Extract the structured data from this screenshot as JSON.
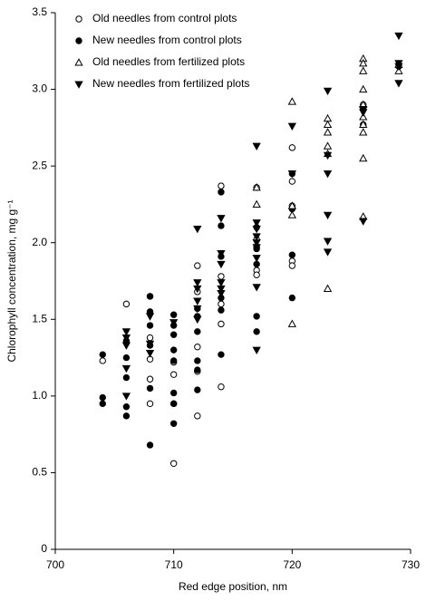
{
  "chart_data": {
    "type": "scatter",
    "xlabel": "Red edge position, nm",
    "ylabel": "Chlorophyll concentration, mg g⁻¹",
    "xlim": [
      700,
      730
    ],
    "xticks": [
      700,
      710,
      720,
      730
    ],
    "ylim": [
      0,
      3.5
    ],
    "yticks": [
      0,
      0.5,
      {
        "value": 1,
        "label": "1.0"
      },
      1.5,
      {
        "value": 2,
        "label": "2.0"
      },
      2.5,
      {
        "value": 3,
        "label": "3.0"
      },
      3.5
    ],
    "legend": "top-left",
    "series": [
      {
        "name": "Old needles from control plots",
        "color": "#000000",
        "marker": "circle-open",
        "x": [
          704,
          706,
          708,
          708,
          708,
          708,
          708,
          710,
          710,
          710,
          710,
          712,
          712,
          712,
          712,
          712,
          714,
          714,
          714,
          714,
          714,
          717,
          717,
          717,
          717,
          717,
          720,
          720,
          720,
          720,
          720,
          726,
          726
        ],
        "values": [
          1.23,
          1.6,
          1.65,
          1.38,
          1.24,
          1.11,
          0.95,
          1.22,
          1.14,
          0.95,
          0.56,
          1.85,
          1.68,
          1.32,
          1.16,
          0.87,
          2.37,
          1.78,
          1.6,
          1.47,
          1.06,
          2.36,
          2.02,
          1.97,
          1.82,
          1.79,
          2.62,
          2.4,
          2.24,
          1.88,
          1.85,
          2.87,
          2.9
        ]
      },
      {
        "name": "New needles from control plots",
        "color": "#000000",
        "marker": "circle-filled",
        "x": [
          704,
          704,
          704,
          706,
          706,
          706,
          706,
          706,
          708,
          708,
          708,
          708,
          708,
          708,
          710,
          710,
          710,
          710,
          710,
          710,
          710,
          710,
          712,
          712,
          712,
          712,
          712,
          712,
          714,
          714,
          714,
          714,
          714,
          714,
          717,
          717,
          717,
          717,
          717,
          720,
          720,
          720,
          720,
          726,
          726,
          729
        ],
        "values": [
          1.27,
          0.99,
          0.95,
          1.36,
          1.25,
          1.12,
          0.93,
          0.87,
          1.65,
          1.55,
          1.46,
          1.33,
          1.05,
          0.68,
          1.53,
          1.46,
          1.4,
          1.3,
          1.23,
          1.02,
          0.95,
          0.82,
          1.57,
          1.52,
          1.42,
          1.23,
          1.17,
          1.04,
          2.33,
          2.11,
          1.91,
          1.64,
          1.56,
          1.27,
          2.1,
          1.96,
          1.86,
          1.52,
          1.42,
          2.45,
          2.22,
          1.92,
          1.64,
          2.87,
          2.77,
          3.15
        ]
      },
      {
        "name": "Old needles from fertilized plots",
        "color": "#000000",
        "marker": "triangle-up-open",
        "x": [
          717,
          717,
          720,
          720,
          720,
          720,
          723,
          723,
          723,
          723,
          723,
          723,
          726,
          726,
          726,
          726,
          726,
          726,
          726,
          726,
          726,
          726,
          729,
          729
        ],
        "values": [
          2.36,
          2.25,
          2.92,
          2.24,
          2.18,
          1.47,
          2.81,
          2.77,
          2.72,
          2.63,
          2.58,
          1.7,
          3.2,
          3.17,
          3.12,
          3.0,
          2.9,
          2.82,
          2.77,
          2.72,
          2.55,
          2.17,
          3.16,
          3.12
        ]
      },
      {
        "name": "New needles from fertilized plots",
        "color": "#000000",
        "marker": "triangle-down-filled",
        "x": [
          706,
          706,
          706,
          706,
          706,
          708,
          708,
          708,
          710,
          712,
          712,
          712,
          712,
          712,
          712,
          714,
          714,
          714,
          714,
          714,
          714,
          717,
          717,
          717,
          717,
          717,
          717,
          717,
          717,
          717,
          720,
          720,
          723,
          723,
          723,
          723,
          723,
          723,
          726,
          726,
          726,
          729,
          729,
          729,
          729
        ],
        "values": [
          1.42,
          1.38,
          1.33,
          1.18,
          1.0,
          1.52,
          1.34,
          1.28,
          1.48,
          2.09,
          1.74,
          1.7,
          1.62,
          1.57,
          1.5,
          2.16,
          1.93,
          1.86,
          1.74,
          1.7,
          1.67,
          2.63,
          2.13,
          2.09,
          2.04,
          2.0,
          1.97,
          1.9,
          1.71,
          1.3,
          2.76,
          2.45,
          2.99,
          2.57,
          2.45,
          2.18,
          2.01,
          1.94,
          2.87,
          2.85,
          2.14,
          3.35,
          3.17,
          3.15,
          3.04
        ]
      }
    ]
  }
}
